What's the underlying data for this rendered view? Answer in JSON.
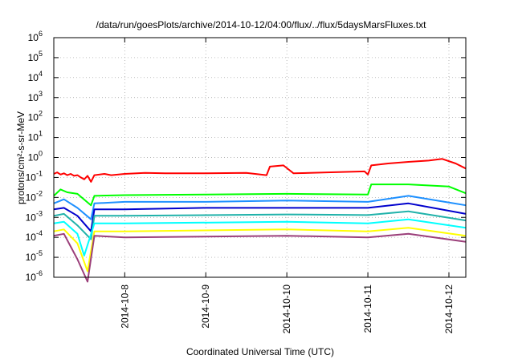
{
  "chart_data": {
    "type": "line",
    "title": "/data/run/goesPlots/archive/2014-10-12/04:00/flux/../flux/5daysMarsFluxes.txt",
    "xlabel": "Coordinated Universal Time (UTC)",
    "ylabel": "protons/cm²-s-sr-MeV",
    "yscale": "log",
    "ylim": [
      1e-06,
      1000000.0
    ],
    "xlim": [
      "2014-10-07 03:00",
      "2014-10-12 05:00"
    ],
    "grid": true,
    "y_ticks": [
      {
        "value": 1e-06,
        "base": "10",
        "exp": "-6"
      },
      {
        "value": 1e-05,
        "base": "10",
        "exp": "-5"
      },
      {
        "value": 0.0001,
        "base": "10",
        "exp": "-4"
      },
      {
        "value": 0.001,
        "base": "10",
        "exp": "-3"
      },
      {
        "value": 0.01,
        "base": "10",
        "exp": "-2"
      },
      {
        "value": 0.1,
        "base": "10",
        "exp": "-1"
      },
      {
        "value": 1,
        "base": "10",
        "exp": "0"
      },
      {
        "value": 10,
        "base": "10",
        "exp": "1"
      },
      {
        "value": 100,
        "base": "10",
        "exp": "2"
      },
      {
        "value": 1000,
        "base": "10",
        "exp": "3"
      },
      {
        "value": 10000,
        "base": "10",
        "exp": "4"
      },
      {
        "value": 100000,
        "base": "10",
        "exp": "5"
      },
      {
        "value": 1000000,
        "base": "10",
        "exp": "6"
      }
    ],
    "x_ticks": [
      "2014-10-8",
      "2014-10-9",
      "2014-10-10",
      "2014-10-11",
      "2014-10-12"
    ],
    "x_tick_values": [
      "2014-10-08 00:00",
      "2014-10-09 00:00",
      "2014-10-10 00:00",
      "2014-10-11 00:00",
      "2014-10-12 00:00"
    ],
    "series": [
      {
        "color": "#ff0000",
        "values": [
          [
            "2014-10-07 03:00",
            0.15
          ],
          [
            "2014-10-07 04:00",
            0.18
          ],
          [
            "2014-10-07 05:00",
            0.14
          ],
          [
            "2014-10-07 06:00",
            0.16
          ],
          [
            "2014-10-07 07:00",
            0.13
          ],
          [
            "2014-10-07 08:00",
            0.15
          ],
          [
            "2014-10-07 09:00",
            0.12
          ],
          [
            "2014-10-07 10:00",
            0.13
          ],
          [
            "2014-10-07 11:00",
            0.1
          ],
          [
            "2014-10-07 12:00",
            0.08
          ],
          [
            "2014-10-07 13:00",
            0.12
          ],
          [
            "2014-10-07 14:00",
            0.06
          ],
          [
            "2014-10-07 15:00",
            0.13
          ],
          [
            "2014-10-07 18:00",
            0.15
          ],
          [
            "2014-10-07 20:00",
            0.13
          ],
          [
            "2014-10-08 00:00",
            0.15
          ],
          [
            "2014-10-08 06:00",
            0.17
          ],
          [
            "2014-10-08 12:00",
            0.16
          ],
          [
            "2014-10-09 00:00",
            0.16
          ],
          [
            "2014-10-09 12:00",
            0.17
          ],
          [
            "2014-10-09 18:00",
            0.13
          ],
          [
            "2014-10-09 19:00",
            0.35
          ],
          [
            "2014-10-09 23:00",
            0.4
          ],
          [
            "2014-10-10 02:00",
            0.16
          ],
          [
            "2014-10-10 12:00",
            0.18
          ],
          [
            "2014-10-10 23:00",
            0.2
          ],
          [
            "2014-10-11 00:00",
            0.14
          ],
          [
            "2014-10-11 01:00",
            0.4
          ],
          [
            "2014-10-11 06:00",
            0.5
          ],
          [
            "2014-10-11 12:00",
            0.6
          ],
          [
            "2014-10-11 18:00",
            0.7
          ],
          [
            "2014-10-11 22:00",
            0.85
          ],
          [
            "2014-10-12 02:00",
            0.5
          ],
          [
            "2014-10-12 05:00",
            0.28
          ]
        ]
      },
      {
        "color": "#00ff00",
        "values": [
          [
            "2014-10-07 03:00",
            0.012
          ],
          [
            "2014-10-07 05:00",
            0.025
          ],
          [
            "2014-10-07 07:00",
            0.018
          ],
          [
            "2014-10-07 10:00",
            0.015
          ],
          [
            "2014-10-07 14:00",
            0.004
          ],
          [
            "2014-10-07 15:00",
            0.012
          ],
          [
            "2014-10-08 00:00",
            0.013
          ],
          [
            "2014-10-09 00:00",
            0.014
          ],
          [
            "2014-10-10 00:00",
            0.015
          ],
          [
            "2014-10-11 00:00",
            0.014
          ],
          [
            "2014-10-11 01:00",
            0.045
          ],
          [
            "2014-10-11 12:00",
            0.045
          ],
          [
            "2014-10-12 00:00",
            0.035
          ],
          [
            "2014-10-12 05:00",
            0.016
          ]
        ]
      },
      {
        "color": "#1e90ff",
        "values": [
          [
            "2014-10-07 03:00",
            0.005
          ],
          [
            "2014-10-07 06:00",
            0.008
          ],
          [
            "2014-10-07 10:00",
            0.003
          ],
          [
            "2014-10-07 14:00",
            0.0008
          ],
          [
            "2014-10-07 15:00",
            0.005
          ],
          [
            "2014-10-08 00:00",
            0.006
          ],
          [
            "2014-10-09 00:00",
            0.006
          ],
          [
            "2014-10-10 00:00",
            0.007
          ],
          [
            "2014-10-11 00:00",
            0.006
          ],
          [
            "2014-10-11 12:00",
            0.012
          ],
          [
            "2014-10-12 05:00",
            0.004
          ]
        ]
      },
      {
        "color": "#0000cd",
        "values": [
          [
            "2014-10-07 03:00",
            0.0025
          ],
          [
            "2014-10-07 06:00",
            0.003
          ],
          [
            "2014-10-07 10:00",
            0.0012
          ],
          [
            "2014-10-07 14:00",
            0.0002
          ],
          [
            "2014-10-07 15:00",
            0.0025
          ],
          [
            "2014-10-08 00:00",
            0.0025
          ],
          [
            "2014-10-09 00:00",
            0.003
          ],
          [
            "2014-10-10 00:00",
            0.003
          ],
          [
            "2014-10-11 00:00",
            0.003
          ],
          [
            "2014-10-11 12:00",
            0.005
          ],
          [
            "2014-10-12 05:00",
            0.0015
          ]
        ]
      },
      {
        "color": "#20b2aa",
        "values": [
          [
            "2014-10-07 03:00",
            0.0012
          ],
          [
            "2014-10-07 06:00",
            0.0015
          ],
          [
            "2014-10-07 10:00",
            0.0004
          ],
          [
            "2014-10-07 14:00",
            8e-05
          ],
          [
            "2014-10-07 15:00",
            0.0012
          ],
          [
            "2014-10-08 00:00",
            0.0012
          ],
          [
            "2014-10-10 00:00",
            0.0014
          ],
          [
            "2014-10-11 00:00",
            0.0013
          ],
          [
            "2014-10-11 12:00",
            0.002
          ],
          [
            "2014-10-12 05:00",
            0.0007
          ]
        ]
      },
      {
        "color": "#00ffff",
        "values": [
          [
            "2014-10-07 03:00",
            0.0005
          ],
          [
            "2014-10-07 06:00",
            0.0006
          ],
          [
            "2014-10-07 10:00",
            0.00015
          ],
          [
            "2014-10-07 12:00",
            1.2e-05
          ],
          [
            "2014-10-07 15:00",
            0.0005
          ],
          [
            "2014-10-08 00:00",
            0.0005
          ],
          [
            "2014-10-10 00:00",
            0.0006
          ],
          [
            "2014-10-11 00:00",
            0.0005
          ],
          [
            "2014-10-11 12:00",
            0.0008
          ],
          [
            "2014-10-12 05:00",
            0.0003
          ]
        ]
      },
      {
        "color": "#ffff00",
        "values": [
          [
            "2014-10-07 03:00",
            0.0002
          ],
          [
            "2014-10-07 06:00",
            0.00025
          ],
          [
            "2014-10-07 10:00",
            5e-05
          ],
          [
            "2014-10-07 13:00",
            2e-06
          ],
          [
            "2014-10-07 15:00",
            0.0002
          ],
          [
            "2014-10-08 00:00",
            0.0002
          ],
          [
            "2014-10-10 00:00",
            0.00025
          ],
          [
            "2014-10-11 00:00",
            0.0002
          ],
          [
            "2014-10-11 12:00",
            0.0003
          ],
          [
            "2014-10-12 05:00",
            0.00012
          ]
        ]
      },
      {
        "color": "#9b3f7a",
        "values": [
          [
            "2014-10-07 03:00",
            0.00012
          ],
          [
            "2014-10-07 06:00",
            0.00015
          ],
          [
            "2014-10-07 10:00",
            8e-06
          ],
          [
            "2014-10-07 13:00",
            6e-07
          ],
          [
            "2014-10-07 15:00",
            0.00012
          ],
          [
            "2014-10-08 00:00",
            0.0001
          ],
          [
            "2014-10-10 00:00",
            0.00012
          ],
          [
            "2014-10-11 00:00",
            0.0001
          ],
          [
            "2014-10-11 12:00",
            0.00015
          ],
          [
            "2014-10-12 05:00",
            6e-05
          ]
        ]
      }
    ]
  }
}
